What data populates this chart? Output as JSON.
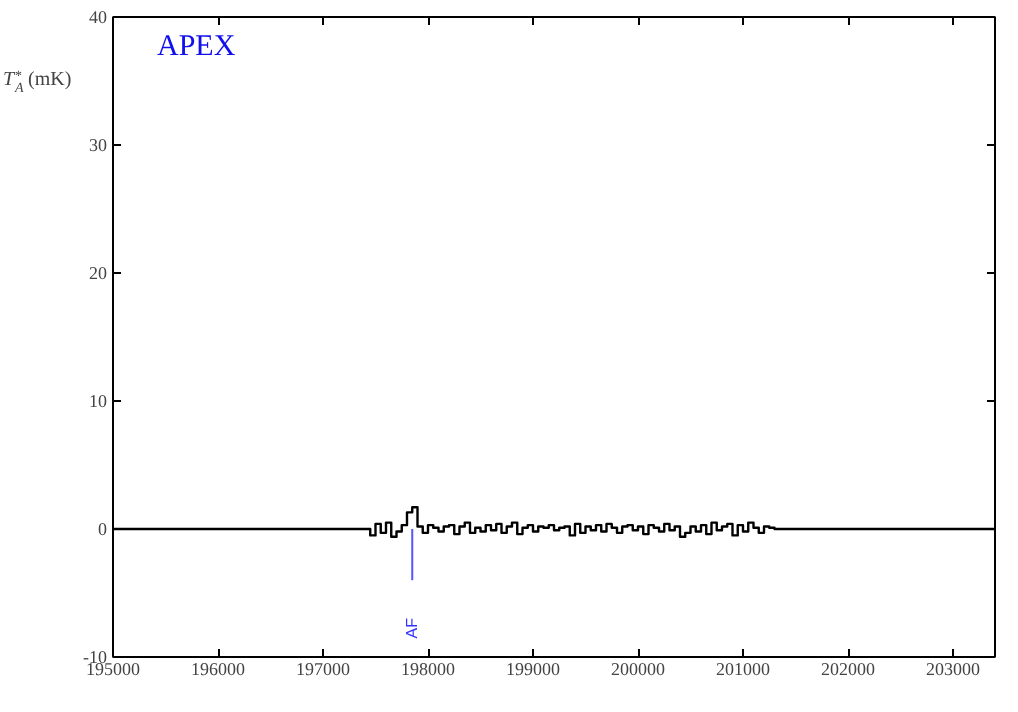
{
  "chart_data": {
    "type": "step",
    "title": "APEX",
    "ylabel": "T$_{A}$$^{*}$ (mK)",
    "xlim": [
      195000,
      203400
    ],
    "ylim": [
      -10,
      40
    ],
    "xticks": [
      195000,
      196000,
      197000,
      198000,
      199000,
      200000,
      201000,
      202000,
      203000
    ],
    "yticks": [
      -10,
      0,
      10,
      20,
      30,
      40
    ],
    "grid": false,
    "series": [
      {
        "color": "#000000",
        "x": [
          195000,
          197450,
          197500,
          197550,
          197600,
          197650,
          197700,
          197750,
          197800,
          197850,
          197900,
          197950,
          198000,
          198050,
          198100,
          198150,
          198200,
          198250,
          198300,
          198350,
          198400,
          198450,
          198500,
          198550,
          198600,
          198650,
          198700,
          198750,
          198800,
          198850,
          198900,
          198950,
          199000,
          199050,
          199100,
          199150,
          199200,
          199250,
          199300,
          199350,
          199400,
          199450,
          199500,
          199550,
          199600,
          199650,
          199700,
          199750,
          199800,
          199850,
          199900,
          199950,
          200000,
          200050,
          200100,
          200150,
          200200,
          200250,
          200300,
          200350,
          200400,
          200450,
          200500,
          200550,
          200600,
          200650,
          200700,
          200750,
          200800,
          200850,
          200900,
          200950,
          201000,
          201050,
          201100,
          201150,
          201200,
          201250,
          201300,
          201350,
          203400
        ],
        "values": [
          0,
          -0.5,
          0.4,
          -0.3,
          0.5,
          -0.6,
          -0.2,
          0.3,
          1.3,
          1.7,
          0.2,
          -0.3,
          0.3,
          0.1,
          -0.2,
          0.2,
          0.3,
          -0.4,
          0.2,
          0.5,
          -0.3,
          0.1,
          -0.2,
          0.3,
          -0.1,
          0.4,
          -0.3,
          0.2,
          0.5,
          -0.4,
          0.1,
          0.3,
          -0.2,
          0.2,
          0.1,
          0.3,
          -0.1,
          0.1,
          0.2,
          -0.5,
          0.4,
          -0.3,
          0.2,
          -0.1,
          0.3,
          -0.2,
          0.4,
          0.1,
          -0.3,
          0.2,
          0.3,
          -0.1,
          0.2,
          -0.4,
          0.3,
          0.1,
          -0.2,
          0.4,
          -0.1,
          0.2,
          -0.6,
          -0.3,
          0.2,
          -0.2,
          0.3,
          -0.4,
          0.5,
          -0.1,
          0.2,
          0.4,
          -0.5,
          0.3,
          -0.2,
          0.5,
          0.1,
          -0.3,
          0.2,
          0.1,
          0,
          0,
          0
        ]
      },
      {
        "type": "line",
        "color": "#5555ff",
        "x": [
          197850,
          197850
        ],
        "values": [
          0,
          -4
        ]
      }
    ],
    "annotations": [
      {
        "text": "AF",
        "x": 197850,
        "y": -4
      }
    ]
  }
}
